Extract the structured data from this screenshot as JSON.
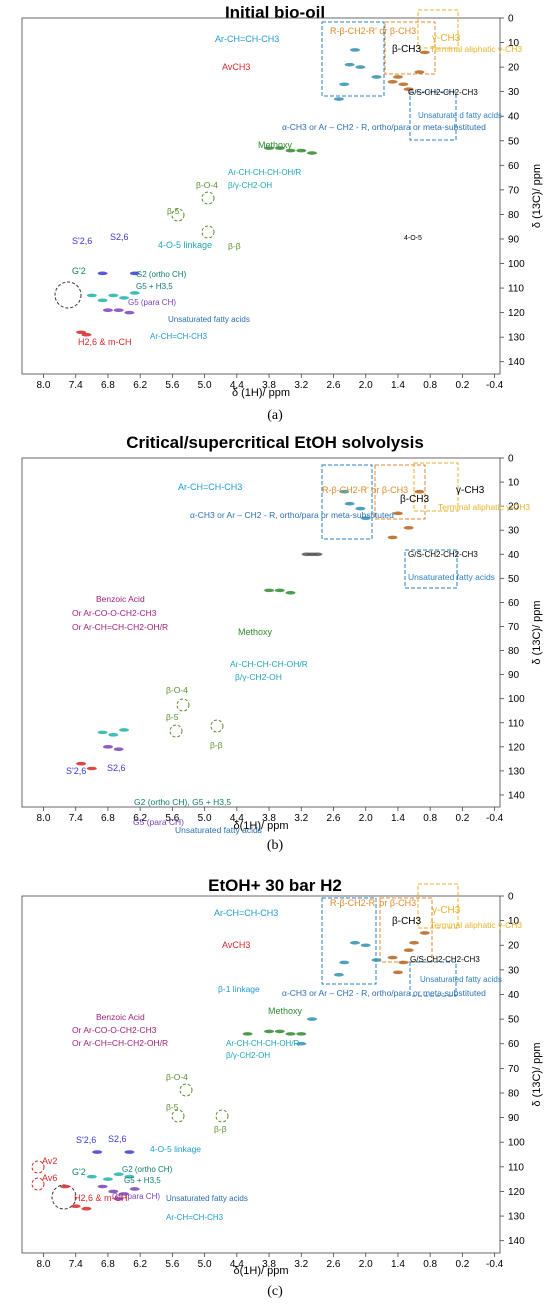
{
  "chart_data": [
    {
      "type": "scatter",
      "title": "Initial bio-oil",
      "subtitle": "",
      "caption": "(a)",
      "xlabel": "δ (1H)/ ppm",
      "ylabel": "δ (13C)/ ppm",
      "xlim": [
        8.4,
        -0.5
      ],
      "ylim": [
        0,
        145
      ],
      "x_ticks": [
        "8.0",
        "7.4",
        "6.8",
        "6.2",
        "5.6",
        "5.0",
        "4.4",
        "3.8",
        "3.2",
        "2.6",
        "2.0",
        "1.4",
        "0.8",
        "0.2",
        "-0.4"
      ],
      "y_ticks": [
        "0",
        "10",
        "20",
        "30",
        "40",
        "50",
        "60",
        "70",
        "80",
        "90",
        "100",
        "110",
        "120",
        "130",
        "140"
      ],
      "series": [
        {
          "color": "#2e8b2e",
          "points": [
            [
              3.6,
              53
            ],
            [
              3.8,
              53
            ],
            [
              3.4,
              54
            ],
            [
              3.2,
              54
            ],
            [
              3.0,
              55
            ]
          ]
        },
        {
          "color": "#2f8fb0",
          "points": [
            [
              2.4,
              27
            ],
            [
              2.3,
              19
            ],
            [
              2.1,
              20
            ],
            [
              2.5,
              33
            ],
            [
              2.2,
              13
            ],
            [
              1.8,
              24
            ]
          ]
        },
        {
          "color": "#b5651d",
          "points": [
            [
              1.5,
              26
            ],
            [
              1.3,
              27
            ],
            [
              1.2,
              29
            ],
            [
              1.0,
              22
            ],
            [
              0.9,
              14
            ],
            [
              1.4,
              24
            ]
          ]
        },
        {
          "color": "#20b2aa",
          "points": [
            [
              7.1,
              113
            ],
            [
              6.7,
              113
            ],
            [
              6.5,
              114
            ],
            [
              6.3,
              112
            ],
            [
              6.9,
              115
            ]
          ]
        },
        {
          "color": "#7b3fb5",
          "points": [
            [
              6.8,
              119
            ],
            [
              6.6,
              119
            ],
            [
              6.4,
              120
            ]
          ]
        },
        {
          "color": "#3a3ad4",
          "points": [
            [
              6.9,
              104
            ],
            [
              6.3,
              104
            ]
          ]
        },
        {
          "color": "#d62828",
          "points": [
            [
              7.3,
              128
            ],
            [
              7.2,
              129
            ]
          ]
        }
      ],
      "annotations": [
        "Ar-CH=CH-CH3",
        "AvCH3",
        "R-β-CH2-R' or β-CH3",
        "β-CH3",
        "γ-CH3",
        "Terminal aliphatic γ-CH3",
        "G/S-CH2-CH2-CH3",
        "Unsaturate d fatty acids",
        "α-CH3 or Ar – CH2 - R, ortho/para or meta-substituted",
        "Methoxy",
        "Ar-CH-CH-CH-OH/R",
        "β/γ-CH2-OH",
        "β-O-4",
        "β-5",
        "β-β",
        "S'2,6",
        "S2,6",
        "4-O-5 linkage",
        "G'2",
        "G2 (ortho CH)",
        "G5 + H3,5",
        "G5 (para CH)",
        "Unsaturated fatty acids",
        "Ar-CH=CH-CH3",
        "H2,6 & m-CH",
        "4-O-5"
      ]
    },
    {
      "type": "scatter",
      "title": "Critical/supercritical EtOH solvolysis",
      "subtitle": "",
      "caption": "(b)",
      "xlabel": "δ(1H)/ ppm",
      "ylabel": "δ (13C)/ ppm",
      "xlim": [
        8.4,
        -0.5
      ],
      "ylim": [
        0,
        145
      ],
      "x_ticks": [
        "8.0",
        "7.4",
        "6.8",
        "6.2",
        "5.6",
        "5.0",
        "4.4",
        "3.8",
        "3.2",
        "2.6",
        "2.0",
        "1.4",
        "0.8",
        "0.2",
        "-0.4"
      ],
      "y_ticks": [
        "0",
        "10",
        "20",
        "30",
        "40",
        "50",
        "60",
        "70",
        "80",
        "90",
        "100",
        "110",
        "120",
        "130",
        "140"
      ],
      "series": [
        {
          "color": "#2e8b2e",
          "points": [
            [
              3.8,
              55
            ],
            [
              3.6,
              55
            ],
            [
              3.4,
              56
            ]
          ]
        },
        {
          "color": "#2f8fb0",
          "points": [
            [
              2.3,
              19
            ],
            [
              2.1,
              21
            ],
            [
              2.0,
              25
            ],
            [
              2.4,
              14
            ]
          ]
        },
        {
          "color": "#b5651d",
          "points": [
            [
              1.4,
              23
            ],
            [
              1.2,
              29
            ],
            [
              1.0,
              14
            ],
            [
              1.5,
              33
            ]
          ]
        },
        {
          "color": "#20b2aa",
          "points": [
            [
              6.9,
              114
            ],
            [
              6.7,
              115
            ],
            [
              6.5,
              113
            ]
          ]
        },
        {
          "color": "#7b3fb5",
          "points": [
            [
              6.8,
              120
            ],
            [
              6.6,
              121
            ]
          ]
        },
        {
          "color": "#d62828",
          "points": [
            [
              7.3,
              127
            ],
            [
              7.1,
              129
            ]
          ]
        },
        {
          "color": "#555555",
          "points": [
            [
              3.1,
              40
            ],
            [
              3.0,
              40
            ],
            [
              2.9,
              40
            ]
          ]
        }
      ],
      "annotations": [
        "Ar-CH=CH-CH3",
        "R-β-CH2-R' or β-CH3",
        "β-CH3",
        "γ-CH3",
        "Terminal aliphatic γ-CH3",
        "α-CH3 or Ar – CH2 - R, ortho/para or meta-substituted",
        "G/S-CH2-CH2-CH3",
        "Unsaturated fatty acids",
        "Benzoic Acid",
        "Or Ar-CO-O-CH2-CH3",
        "Or Ar-CH=CH-CH2-OH/R",
        "Methoxy",
        "Ar-CH-CH-CH-OH/R",
        "β/γ-CH2-OH",
        "β-O-4",
        "β-5",
        "β-β",
        "S'2,6",
        "S2,6",
        "G2 (ortho CH), G5 + H3,5",
        "G5 (para CH)",
        "Unsaturated fatty acids",
        "H2,6 & m-CH"
      ]
    },
    {
      "type": "scatter",
      "title": "EtOH+ 30 bar H2",
      "subtitle": "",
      "caption": "(c)",
      "xlabel": "δ(1H)/ ppm",
      "ylabel": "δ (13C)/ ppm",
      "xlim": [
        8.4,
        -0.5
      ],
      "ylim": [
        0,
        145
      ],
      "x_ticks": [
        "8.0",
        "7.4",
        "6.8",
        "6.2",
        "5.6",
        "5.0",
        "4.4",
        "3.8",
        "3.2",
        "2.6",
        "2.0",
        "1.4",
        "0.8",
        "0.2",
        "-0.4"
      ],
      "y_ticks": [
        "0",
        "10",
        "20",
        "30",
        "40",
        "50",
        "60",
        "70",
        "80",
        "90",
        "100",
        "110",
        "120",
        "130",
        "140"
      ],
      "series": [
        {
          "color": "#2e8b2e",
          "points": [
            [
              3.8,
              55
            ],
            [
              3.6,
              55
            ],
            [
              3.4,
              56
            ],
            [
              3.2,
              56
            ],
            [
              4.2,
              56
            ]
          ]
        },
        {
          "color": "#2f8fb0",
          "points": [
            [
              2.4,
              27
            ],
            [
              2.2,
              19
            ],
            [
              2.0,
              20
            ],
            [
              2.5,
              32
            ],
            [
              1.8,
              26
            ],
            [
              3.0,
              50
            ],
            [
              3.2,
              60
            ]
          ]
        },
        {
          "color": "#b5651d",
          "points": [
            [
              1.5,
              25
            ],
            [
              1.3,
              27
            ],
            [
              1.1,
              19
            ],
            [
              0.9,
              15
            ],
            [
              1.4,
              31
            ],
            [
              1.2,
              22
            ]
          ]
        },
        {
          "color": "#20b2aa",
          "points": [
            [
              7.1,
              114
            ],
            [
              6.8,
              115
            ],
            [
              6.6,
              113
            ],
            [
              6.4,
              114
            ]
          ]
        },
        {
          "color": "#7b3fb5",
          "points": [
            [
              6.9,
              118
            ],
            [
              6.7,
              120
            ],
            [
              6.5,
              121
            ],
            [
              6.3,
              119
            ],
            [
              6.6,
              123
            ]
          ]
        },
        {
          "color": "#3a3ad4",
          "points": [
            [
              7.0,
              104
            ],
            [
              6.4,
              104
            ]
          ]
        },
        {
          "color": "#d62828",
          "points": [
            [
              7.4,
              126
            ],
            [
              7.2,
              127
            ],
            [
              7.6,
              118
            ]
          ]
        }
      ],
      "annotations": [
        "Ar-CH=CH-CH3",
        "AvCH3",
        "R-β-CH2-R' or β-CH3",
        "β-CH3",
        "γ-CH3",
        "Terminal aliphatic γ-CH3",
        "G/S-CH2-CH2-CH3",
        "Unsaturated fatty acids",
        "α-CH3 or Ar – CH2 - R, ortho/para or meta-substituted",
        "β-1 linkage",
        "Methoxy",
        "Benzoic Acid",
        "Or Ar-CO-O-CH2-CH3",
        "Or Ar-CH=CH-CH2-OH/R",
        "Ar-CH-CH-CH-OH/R",
        "β/γ-CH2-OH",
        "β-O-4",
        "β-5",
        "β-β",
        "S'2,6",
        "S2,6",
        "4-O-5 linkage",
        "Av2",
        "G'2",
        "G2 (ortho CH)",
        "G5 + H3,5",
        "Av6",
        "G5 (para CH)",
        "H2,6 & m-CH",
        "Unsaturated fatty acids",
        "Ar-CH=CH-CH3"
      ]
    }
  ]
}
